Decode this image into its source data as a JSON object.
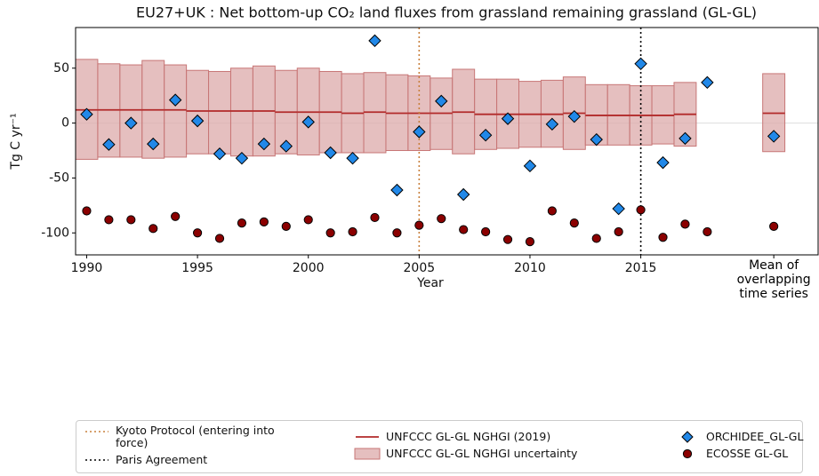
{
  "chart_data": {
    "type": "combo",
    "title": "EU27+UK : Net bottom-up CO₂ land fluxes from grassland remaining grassland (GL-GL)",
    "x_label": "Year",
    "y_label": "Tg C yr⁻¹",
    "x": [
      1990,
      1991,
      1992,
      1993,
      1994,
      1995,
      1996,
      1997,
      1998,
      1999,
      2000,
      2001,
      2002,
      2003,
      2004,
      2005,
      2006,
      2007,
      2008,
      2009,
      2010,
      2011,
      2012,
      2013,
      2014,
      2015,
      2016,
      2017,
      2018,
      2021
    ],
    "xlim": [
      1989.5,
      2023
    ],
    "xticks": [
      1990,
      1995,
      2000,
      2005,
      2010,
      2015,
      {
        "value": 2021,
        "label": "Mean of\noverlapping\ntime series"
      }
    ],
    "ylim": [
      -120,
      87
    ],
    "yticks": [
      -100,
      -50,
      0,
      50
    ],
    "zero_line": true,
    "series": [
      {
        "name": "UNFCCC GL-GL NGHGI (2019)",
        "color": "#b22a2a",
        "style": "step",
        "values": [
          12,
          12,
          12,
          12,
          12,
          11,
          11,
          11,
          11,
          10,
          10,
          10,
          9,
          10,
          9,
          9,
          9,
          10,
          8,
          8,
          8,
          8,
          9,
          7,
          7,
          7,
          7,
          8,
          null,
          9
        ]
      },
      {
        "name": "UNFCCC GL-GL NGHGI uncertainty",
        "color": "#dcaaaa",
        "style": "box",
        "upper": [
          58,
          54,
          53,
          57,
          53,
          48,
          47,
          50,
          52,
          48,
          50,
          47,
          45,
          46,
          44,
          43,
          41,
          49,
          40,
          40,
          38,
          39,
          42,
          35,
          35,
          34,
          34,
          37,
          null,
          45
        ],
        "lower": [
          -33,
          -31,
          -31,
          -32,
          -31,
          -28,
          -28,
          -30,
          -30,
          -28,
          -29,
          -27,
          -27,
          -27,
          -25,
          -25,
          -24,
          -28,
          -24,
          -23,
          -22,
          -22,
          -24,
          -20,
          -20,
          -20,
          -19,
          -21,
          null,
          -26
        ]
      },
      {
        "name": "ORCHIDEE_GL-GL",
        "color": "#2188e8",
        "style": "diamond",
        "values": [
          8,
          -19.5,
          0,
          -19,
          21,
          2,
          -28,
          -32,
          -19,
          -21,
          1,
          -27,
          -32,
          75,
          -61,
          -8,
          20,
          -65,
          -11,
          4,
          -39,
          -1,
          6,
          -15,
          -78,
          54,
          -36,
          -14,
          37,
          -12
        ]
      },
      {
        "name": "ECOSSE GL-GL",
        "color": "#8b0000",
        "style": "circle",
        "values": [
          -80,
          -88,
          -88,
          -96,
          -85,
          -100,
          -105,
          -91,
          -90,
          -94,
          -88,
          -100,
          -99,
          -86,
          -100,
          -93,
          -87,
          -97,
          -99,
          -106,
          -108,
          -80,
          -91,
          -105,
          -99,
          -79,
          -104,
          -92,
          -99,
          -94
        ]
      }
    ],
    "vlines": [
      {
        "x": 2005,
        "name": "Kyoto Protocol (entering into force)",
        "color": "#c8803c"
      },
      {
        "x": 2015,
        "name": "Paris Agreement",
        "color": "#000000"
      }
    ]
  }
}
